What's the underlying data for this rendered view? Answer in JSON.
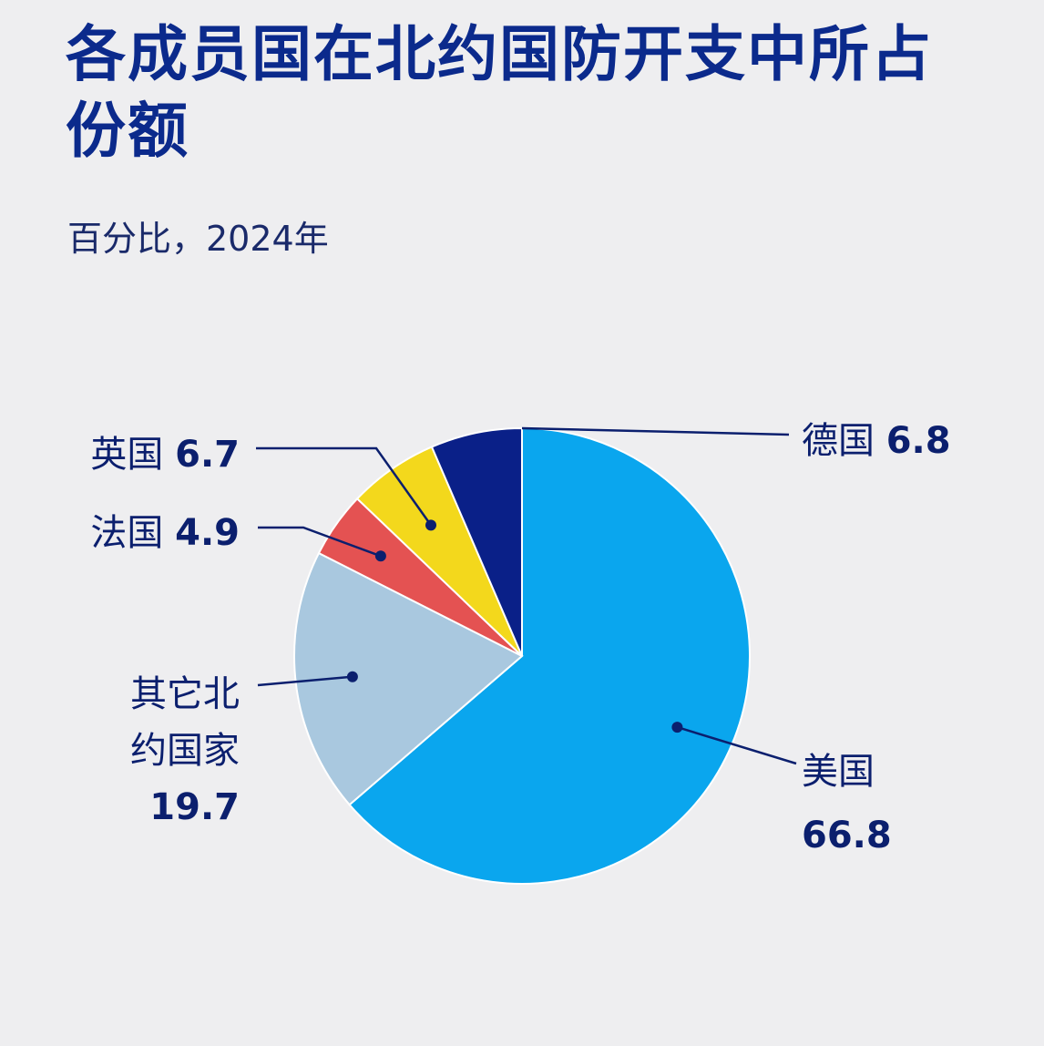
{
  "header": {
    "title": "各成员国在北约国防开支中所占份额",
    "subtitle": "百分比，2024年"
  },
  "chart_data": {
    "type": "pie",
    "title": "各成员国在北约国防开支中所占份额",
    "subtitle": "百分比，2024年",
    "slices": [
      {
        "key": "us",
        "name_lines": [
          "美国"
        ],
        "value": 66.8,
        "value_text": "66.8",
        "color": "#0aa6ee"
      },
      {
        "key": "others",
        "name_lines": [
          "其它北",
          "约国家"
        ],
        "value": 19.7,
        "value_text": "19.7",
        "color": "#a9c8df"
      },
      {
        "key": "france",
        "name_lines": [
          "法国"
        ],
        "value": 4.9,
        "value_text": "4.9",
        "color": "#e45252"
      },
      {
        "key": "uk",
        "name_lines": [
          "英国"
        ],
        "value": 6.7,
        "value_text": "6.7",
        "color": "#f3d81c"
      },
      {
        "key": "germany",
        "name_lines": [
          "德国"
        ],
        "value": 6.8,
        "value_text": "6.8",
        "color": "#0a2088"
      }
    ],
    "start_position": "12 o'clock, clockwise",
    "legend": "none",
    "grid": false
  }
}
